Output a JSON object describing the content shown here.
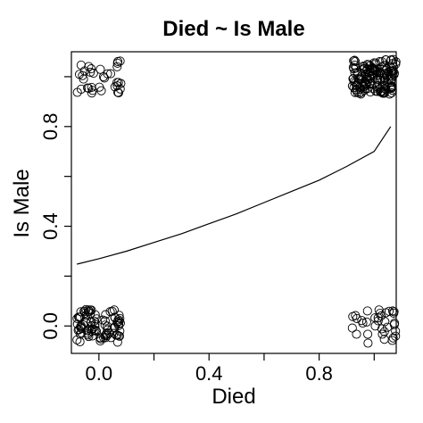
{
  "chart_data": {
    "type": "scatter",
    "title": "Died ~ Is Male",
    "xlabel": "Died",
    "ylabel": "Is Male",
    "xlim": [
      -0.1,
      1.08
    ],
    "ylim": [
      -0.11,
      1.1
    ],
    "x_ticks": [
      0.0,
      0.2,
      0.4,
      0.6,
      0.8,
      1.0
    ],
    "x_tick_labels": [
      "0.0",
      "",
      "0.4",
      "",
      "0.8",
      ""
    ],
    "y_ticks": [
      0.0,
      0.2,
      0.4,
      0.6,
      0.8,
      1.0
    ],
    "y_tick_labels": [
      "0.0",
      "",
      "0.4",
      "",
      "0.8",
      ""
    ],
    "grid": false,
    "jitter_clusters": [
      {
        "x": 0.0,
        "y": 1.0,
        "count": 35,
        "x_spread": 0.08,
        "y_spread": 0.07
      },
      {
        "x": 1.0,
        "y": 1.0,
        "count": 160,
        "x_spread": 0.08,
        "y_spread": 0.07
      },
      {
        "x": 0.0,
        "y": 0.0,
        "count": 90,
        "x_spread": 0.08,
        "y_spread": 0.07
      },
      {
        "x": 1.0,
        "y": 0.0,
        "count": 35,
        "x_spread": 0.08,
        "y_spread": 0.07
      }
    ],
    "fit_line": {
      "type": "logistic",
      "x": [
        -0.08,
        0.0,
        0.1,
        0.2,
        0.3,
        0.4,
        0.5,
        0.6,
        0.7,
        0.8,
        0.9,
        1.0,
        1.06
      ],
      "y": [
        0.248,
        0.27,
        0.3,
        0.335,
        0.37,
        0.41,
        0.45,
        0.495,
        0.54,
        0.585,
        0.64,
        0.7,
        0.8
      ]
    }
  }
}
